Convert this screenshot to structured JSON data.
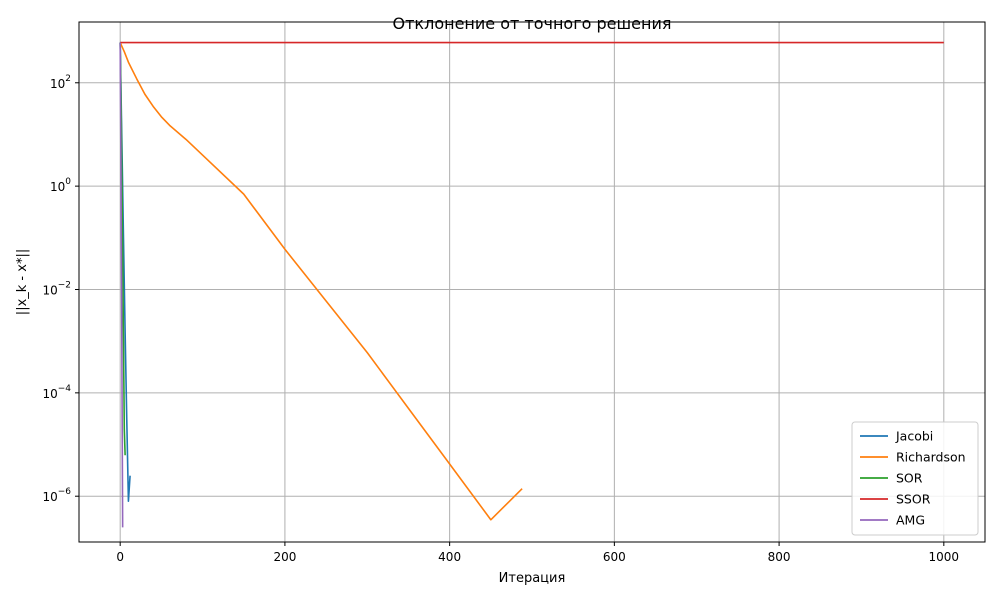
{
  "chart_data": {
    "type": "line",
    "title": "Отклонение от точного решения",
    "xlabel": "Итерация",
    "ylabel": "||x_k - x*||",
    "yscale": "log",
    "grid": true,
    "legend_position": "bottom-right",
    "xlim": [
      -50,
      1050
    ],
    "ylim": [
      1.3e-07,
      1500
    ],
    "x_ticks": [
      0,
      200,
      400,
      600,
      800,
      1000
    ],
    "y_ticks": [
      {
        "value": 1e-06,
        "base": "10",
        "exp": "−6"
      },
      {
        "value": 0.0001,
        "base": "10",
        "exp": "−4"
      },
      {
        "value": 0.01,
        "base": "10",
        "exp": "−2"
      },
      {
        "value": 1,
        "base": "10",
        "exp": "0"
      },
      {
        "value": 100,
        "base": "10",
        "exp": "2"
      }
    ],
    "series": [
      {
        "name": "Jacobi",
        "color": "#1f77b4",
        "x": [
          0,
          2,
          4,
          6,
          8,
          10,
          12
        ],
        "y": [
          600,
          8,
          0.1,
          0.0015,
          3e-05,
          8e-07,
          2.5e-06
        ]
      },
      {
        "name": "Richardson",
        "color": "#ff7f0e",
        "x": [
          0,
          5,
          10,
          20,
          30,
          40,
          50,
          60,
          80,
          100,
          150,
          200,
          250,
          300,
          350,
          400,
          450,
          488
        ],
        "y": [
          600,
          400,
          250,
          120,
          60,
          35,
          22,
          15,
          8,
          4,
          0.7,
          0.06,
          0.006,
          0.0006,
          5e-05,
          4.2e-06,
          3.5e-07,
          1.4e-06
        ]
      },
      {
        "name": "SOR",
        "color": "#2ca02c",
        "x": [
          0,
          1,
          2,
          3,
          4,
          5,
          6
        ],
        "y": [
          600,
          50,
          2,
          0.05,
          0.001,
          2e-05,
          6.2e-06
        ]
      },
      {
        "name": "SSOR",
        "color": "#d62728",
        "x": [
          0,
          1000
        ],
        "y": [
          600,
          600
        ]
      },
      {
        "name": "AMG",
        "color": "#9467bd",
        "x": [
          0,
          1,
          2,
          3
        ],
        "y": [
          600,
          1.5,
          0.001,
          2.5e-07
        ]
      }
    ]
  }
}
